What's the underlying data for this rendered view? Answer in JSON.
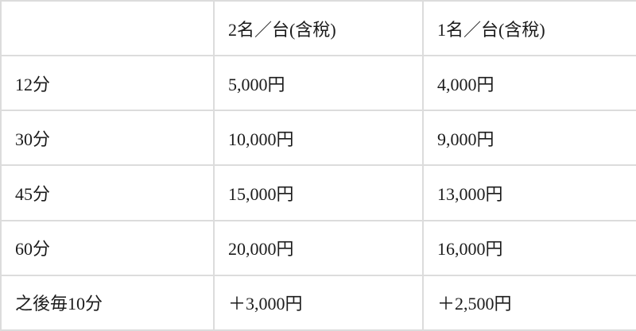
{
  "colors": {
    "background": "#ffffff",
    "border": "#dcdcdc",
    "text": "#1b1b1b"
  },
  "table": {
    "columns": [
      "",
      "2名／台(含稅)",
      "1名／台(含稅)"
    ],
    "rows": [
      {
        "duration": "12分",
        "price_two": "5,000円",
        "price_one": "4,000円"
      },
      {
        "duration": "30分",
        "price_two": "10,000円",
        "price_one": "9,000円"
      },
      {
        "duration": "45分",
        "price_two": "15,000円",
        "price_one": "13,000円"
      },
      {
        "duration": "60分",
        "price_two": "20,000円",
        "price_one": "16,000円"
      },
      {
        "duration": "之後毎10分",
        "price_two": "＋3,000円",
        "price_one": "＋2,500円"
      }
    ]
  }
}
